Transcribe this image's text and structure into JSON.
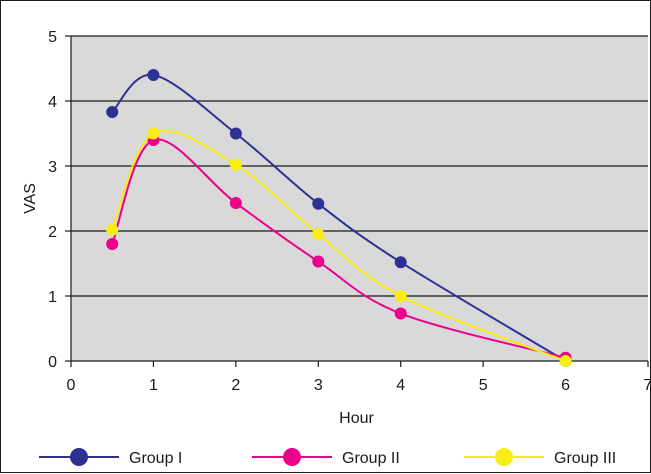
{
  "chart_data": {
    "type": "line",
    "title": "",
    "xlabel": "Hour",
    "ylabel": "VAS",
    "xlim": [
      0,
      7
    ],
    "ylim": [
      0,
      5
    ],
    "xticks": [
      "0",
      "1",
      "2",
      "3",
      "4",
      "5",
      "6",
      "7"
    ],
    "yticks": [
      "0",
      "1",
      "2",
      "3",
      "4",
      "5"
    ],
    "grid": "horizontal",
    "legend_position": "bottom",
    "plot_background": "#d9d9d9",
    "series": [
      {
        "name": "Group I",
        "color": "#2e3192",
        "x": [
          0.5,
          1,
          2,
          3,
          4,
          6
        ],
        "y": [
          3.83,
          4.4,
          3.5,
          2.42,
          1.52,
          0.0
        ]
      },
      {
        "name": "Group II",
        "color": "#ec008c",
        "x": [
          0.5,
          1,
          2,
          3,
          4,
          6
        ],
        "y": [
          1.8,
          3.4,
          2.43,
          1.53,
          0.73,
          0.05
        ]
      },
      {
        "name": "Group III",
        "color": "#f7ec13",
        "x": [
          0.5,
          1,
          2,
          3,
          4,
          6
        ],
        "y": [
          2.02,
          3.5,
          3.02,
          1.95,
          1.0,
          0.0
        ]
      }
    ]
  }
}
